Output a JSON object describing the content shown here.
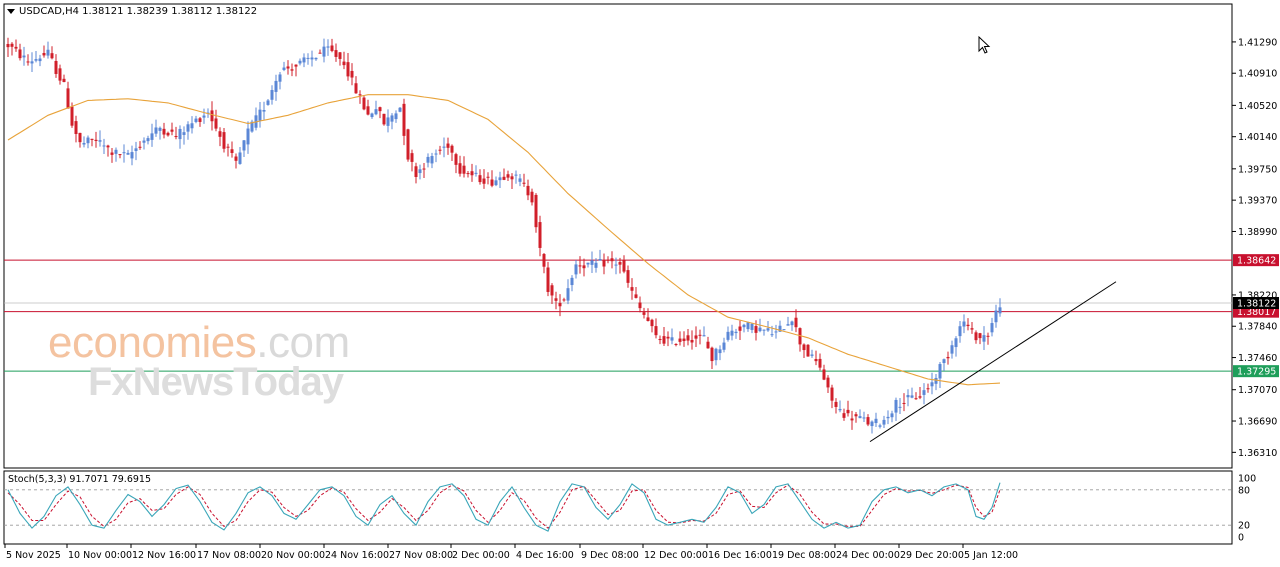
{
  "header": {
    "symbol_line": "USDCAD,H4  1.38121 1.38239 1.38112 1.38122"
  },
  "indicator": {
    "label": "Stoch(5,3,3) 91.7071 79.6915"
  },
  "watermark": {
    "brand": "economies",
    "tld": ".com",
    "sub": "FxNewsToday"
  },
  "colors": {
    "bull": "#5b87d6",
    "bear": "#d11f2a",
    "ma": "#e8a33a",
    "resistance": "#c8102e",
    "support": "#1e9e5a",
    "trend": "#000000",
    "stoch_main": "#3aa6b9",
    "stoch_signal": "#c8102e"
  },
  "chart_data": [
    {
      "type": "candlestick",
      "symbol": "USDCAD",
      "timeframe": "H4",
      "ylim": [
        1.3612,
        1.4175
      ],
      "y_ticks": [
        "1.41290",
        "1.40910",
        "1.40520",
        "1.40140",
        "1.39750",
        "1.39370",
        "1.38990",
        "1.38220",
        "1.37840",
        "1.37460",
        "1.37070",
        "1.36690",
        "1.36310"
      ],
      "x_labels": [
        "5 Nov 2025",
        "10 Nov 00:00",
        "12 Nov 16:00",
        "17 Nov 08:00",
        "20 Nov 00:00",
        "24 Nov 16:00",
        "27 Nov 08:00",
        "2 Dec 00:00",
        "4 Dec 16:00",
        "9 Dec 08:00",
        "12 Dec 00:00",
        "16 Dec 16:00",
        "19 Dec 08:00",
        "24 Dec 00:00",
        "29 Dec 20:00",
        "5 Jan 12:00"
      ],
      "price_path": [
        [
          0,
          1.4125
        ],
        [
          5,
          1.4105
        ],
        [
          10,
          1.4115
        ],
        [
          14,
          1.4075
        ],
        [
          16,
          1.403
        ],
        [
          18,
          1.4005
        ],
        [
          22,
          1.401
        ],
        [
          26,
          1.3995
        ],
        [
          30,
          1.399
        ],
        [
          34,
          1.401
        ],
        [
          38,
          1.4025
        ],
        [
          42,
          1.4015
        ],
        [
          46,
          1.403
        ],
        [
          50,
          1.4045
        ],
        [
          54,
          1.4005
        ],
        [
          57,
          1.398
        ],
        [
          60,
          1.402
        ],
        [
          64,
          1.405
        ],
        [
          68,
          1.4095
        ],
        [
          72,
          1.41
        ],
        [
          76,
          1.411
        ],
        [
          80,
          1.412
        ],
        [
          84,
          1.4105
        ],
        [
          86,
          1.408
        ],
        [
          88,
          1.406
        ],
        [
          90,
          1.404
        ],
        [
          92,
          1.405
        ],
        [
          94,
          1.403
        ],
        [
          96,
          1.404
        ],
        [
          98,
          1.405
        ],
        [
          100,
          1.399
        ],
        [
          102,
          1.397
        ],
        [
          106,
          1.399
        ],
        [
          110,
          1.4005
        ],
        [
          113,
          1.3975
        ],
        [
          117,
          1.3965
        ],
        [
          121,
          1.396
        ],
        [
          125,
          1.397
        ],
        [
          128,
          1.396
        ],
        [
          131,
          1.394
        ],
        [
          133,
          1.3875
        ],
        [
          135,
          1.383
        ],
        [
          137,
          1.381
        ],
        [
          139,
          1.3818
        ],
        [
          142,
          1.386
        ],
        [
          146,
          1.3858
        ],
        [
          150,
          1.3862
        ],
        [
          153,
          1.386
        ],
        [
          155,
          1.3835
        ],
        [
          158,
          1.3805
        ],
        [
          160,
          1.379
        ],
        [
          162,
          1.377
        ],
        [
          166,
          1.3765
        ],
        [
          170,
          1.377
        ],
        [
          174,
          1.377
        ],
        [
          176,
          1.3745
        ],
        [
          180,
          1.3775
        ],
        [
          184,
          1.3785
        ],
        [
          188,
          1.378
        ],
        [
          192,
          1.3775
        ],
        [
          196,
          1.3795
        ],
        [
          198,
          1.3765
        ],
        [
          200,
          1.375
        ],
        [
          203,
          1.3735
        ],
        [
          205,
          1.3705
        ],
        [
          207,
          1.3685
        ],
        [
          210,
          1.3675
        ],
        [
          213,
          1.3672
        ],
        [
          216,
          1.3665
        ],
        [
          219,
          1.367
        ],
        [
          222,
          1.369
        ],
        [
          225,
          1.3695
        ],
        [
          228,
          1.37
        ],
        [
          231,
          1.3715
        ],
        [
          233,
          1.3735
        ],
        [
          235,
          1.375
        ],
        [
          237,
          1.3775
        ],
        [
          239,
          1.379
        ],
        [
          241,
          1.3775
        ],
        [
          243,
          1.377
        ],
        [
          245,
          1.3775
        ],
        [
          247,
          1.38
        ],
        [
          248,
          1.3812
        ]
      ],
      "ma_path": [
        [
          0,
          1.401
        ],
        [
          10,
          1.404
        ],
        [
          20,
          1.4058
        ],
        [
          30,
          1.406
        ],
        [
          40,
          1.4055
        ],
        [
          50,
          1.4042
        ],
        [
          60,
          1.403
        ],
        [
          70,
          1.404
        ],
        [
          80,
          1.4055
        ],
        [
          90,
          1.4065
        ],
        [
          100,
          1.4065
        ],
        [
          110,
          1.4058
        ],
        [
          120,
          1.4035
        ],
        [
          130,
          1.3995
        ],
        [
          140,
          1.3945
        ],
        [
          150,
          1.3902
        ],
        [
          160,
          1.386
        ],
        [
          170,
          1.3822
        ],
        [
          180,
          1.3795
        ],
        [
          190,
          1.3783
        ],
        [
          200,
          1.377
        ],
        [
          210,
          1.375
        ],
        [
          220,
          1.3735
        ],
        [
          230,
          1.372
        ],
        [
          240,
          1.3713
        ],
        [
          248,
          1.3715
        ]
      ],
      "levels": [
        {
          "value": 1.38642,
          "label": "1.38642",
          "kind": "resistance"
        },
        {
          "value": 1.38017,
          "label": "1.38017",
          "kind": "resistance"
        },
        {
          "value": 1.37295,
          "label": "1.37295",
          "kind": "support"
        },
        {
          "value": 1.38122,
          "label": "1.38122",
          "kind": "current"
        }
      ],
      "trendline": [
        [
          1.3644,
          "24 Dec 00:00"
        ],
        [
          1.3838,
          "beyond 5 Jan 12:00"
        ]
      ]
    },
    {
      "type": "line",
      "name": "Stoch(5,3,3)",
      "ylim": [
        0,
        100
      ],
      "y_ticks": [
        100,
        80,
        20,
        0
      ],
      "main_last": 91.7071,
      "signal_last": 79.6915,
      "main_path": [
        [
          0,
          80
        ],
        [
          3,
          40
        ],
        [
          6,
          15
        ],
        [
          9,
          35
        ],
        [
          12,
          70
        ],
        [
          15,
          85
        ],
        [
          18,
          55
        ],
        [
          21,
          20
        ],
        [
          24,
          15
        ],
        [
          27,
          45
        ],
        [
          30,
          72
        ],
        [
          33,
          60
        ],
        [
          36,
          35
        ],
        [
          39,
          55
        ],
        [
          42,
          82
        ],
        [
          45,
          88
        ],
        [
          48,
          60
        ],
        [
          51,
          25
        ],
        [
          54,
          12
        ],
        [
          57,
          40
        ],
        [
          60,
          75
        ],
        [
          63,
          85
        ],
        [
          66,
          70
        ],
        [
          69,
          40
        ],
        [
          72,
          30
        ],
        [
          75,
          55
        ],
        [
          78,
          80
        ],
        [
          81,
          85
        ],
        [
          84,
          70
        ],
        [
          87,
          35
        ],
        [
          90,
          20
        ],
        [
          93,
          55
        ],
        [
          96,
          70
        ],
        [
          99,
          40
        ],
        [
          102,
          20
        ],
        [
          105,
          60
        ],
        [
          108,
          85
        ],
        [
          111,
          90
        ],
        [
          114,
          70
        ],
        [
          117,
          30
        ],
        [
          120,
          20
        ],
        [
          123,
          60
        ],
        [
          126,
          85
        ],
        [
          129,
          50
        ],
        [
          132,
          20
        ],
        [
          135,
          10
        ],
        [
          138,
          60
        ],
        [
          141,
          90
        ],
        [
          144,
          85
        ],
        [
          147,
          50
        ],
        [
          150,
          30
        ],
        [
          153,
          55
        ],
        [
          156,
          90
        ],
        [
          159,
          75
        ],
        [
          162,
          30
        ],
        [
          165,
          20
        ],
        [
          168,
          25
        ],
        [
          171,
          30
        ],
        [
          174,
          25
        ],
        [
          177,
          50
        ],
        [
          180,
          85
        ],
        [
          183,
          75
        ],
        [
          186,
          40
        ],
        [
          189,
          55
        ],
        [
          192,
          85
        ],
        [
          195,
          90
        ],
        [
          198,
          60
        ],
        [
          201,
          30
        ],
        [
          204,
          15
        ],
        [
          207,
          25
        ],
        [
          210,
          15
        ],
        [
          213,
          20
        ],
        [
          216,
          60
        ],
        [
          219,
          80
        ],
        [
          222,
          85
        ],
        [
          225,
          75
        ],
        [
          228,
          80
        ],
        [
          231,
          70
        ],
        [
          234,
          85
        ],
        [
          237,
          90
        ],
        [
          240,
          80
        ],
        [
          242,
          35
        ],
        [
          244,
          30
        ],
        [
          246,
          50
        ],
        [
          248,
          92
        ]
      ],
      "signal_path": [
        [
          0,
          75
        ],
        [
          3,
          55
        ],
        [
          6,
          28
        ],
        [
          9,
          28
        ],
        [
          12,
          55
        ],
        [
          15,
          78
        ],
        [
          18,
          68
        ],
        [
          21,
          35
        ],
        [
          24,
          18
        ],
        [
          27,
          30
        ],
        [
          30,
          58
        ],
        [
          33,
          65
        ],
        [
          36,
          45
        ],
        [
          39,
          48
        ],
        [
          42,
          72
        ],
        [
          45,
          85
        ],
        [
          48,
          72
        ],
        [
          51,
          40
        ],
        [
          54,
          18
        ],
        [
          57,
          28
        ],
        [
          60,
          60
        ],
        [
          63,
          80
        ],
        [
          66,
          76
        ],
        [
          69,
          50
        ],
        [
          72,
          35
        ],
        [
          75,
          45
        ],
        [
          78,
          70
        ],
        [
          81,
          83
        ],
        [
          84,
          76
        ],
        [
          87,
          48
        ],
        [
          90,
          28
        ],
        [
          93,
          42
        ],
        [
          96,
          65
        ],
        [
          99,
          50
        ],
        [
          102,
          28
        ],
        [
          105,
          45
        ],
        [
          108,
          75
        ],
        [
          111,
          88
        ],
        [
          114,
          78
        ],
        [
          117,
          45
        ],
        [
          120,
          25
        ],
        [
          123,
          45
        ],
        [
          126,
          75
        ],
        [
          129,
          62
        ],
        [
          132,
          32
        ],
        [
          135,
          15
        ],
        [
          138,
          42
        ],
        [
          141,
          80
        ],
        [
          144,
          86
        ],
        [
          147,
          62
        ],
        [
          150,
          38
        ],
        [
          153,
          45
        ],
        [
          156,
          78
        ],
        [
          159,
          80
        ],
        [
          162,
          45
        ],
        [
          165,
          25
        ],
        [
          168,
          24
        ],
        [
          171,
          28
        ],
        [
          174,
          27
        ],
        [
          177,
          40
        ],
        [
          180,
          72
        ],
        [
          183,
          78
        ],
        [
          186,
          52
        ],
        [
          189,
          50
        ],
        [
          192,
          75
        ],
        [
          195,
          88
        ],
        [
          198,
          72
        ],
        [
          201,
          42
        ],
        [
          204,
          22
        ],
        [
          207,
          22
        ],
        [
          210,
          18
        ],
        [
          213,
          18
        ],
        [
          216,
          45
        ],
        [
          219,
          72
        ],
        [
          222,
          82
        ],
        [
          225,
          78
        ],
        [
          228,
          79
        ],
        [
          231,
          74
        ],
        [
          234,
          80
        ],
        [
          237,
          88
        ],
        [
          240,
          84
        ],
        [
          242,
          50
        ],
        [
          244,
          35
        ],
        [
          246,
          42
        ],
        [
          248,
          80
        ]
      ]
    }
  ]
}
